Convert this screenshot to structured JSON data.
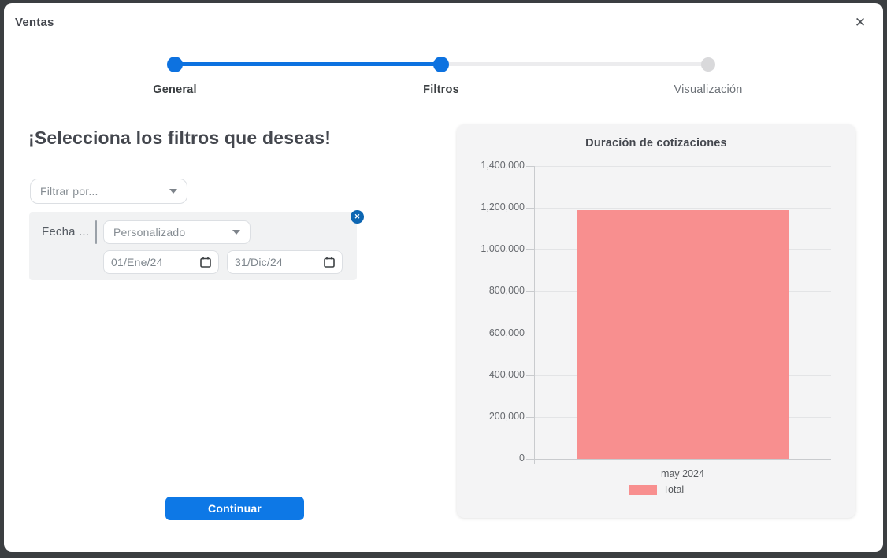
{
  "modal": {
    "title": "Ventas",
    "close_icon": "✕"
  },
  "stepper": {
    "steps": [
      {
        "label": "General",
        "state": "complete"
      },
      {
        "label": "Filtros",
        "state": "active"
      },
      {
        "label": "Visualización",
        "state": "pending"
      }
    ]
  },
  "filters": {
    "heading": "¡Selecciona los filtros que deseas!",
    "filter_by_placeholder": "Filtrar por...",
    "chip": {
      "label": "Fecha ...",
      "mode_selected": "Personalizado",
      "date_from": "01/Ene/24",
      "date_to": "31/Dic/24",
      "remove_icon": "✕"
    },
    "continue_label": "Continuar"
  },
  "chart_data": {
    "type": "bar",
    "title": "Duración de cotizaciones",
    "categories": [
      "may 2024"
    ],
    "series": [
      {
        "name": "Total",
        "values": [
          1190000
        ],
        "color": "#f88f8f"
      }
    ],
    "ylim": [
      0,
      1400000
    ],
    "ytick_step": 200000,
    "ytick_labels": [
      "0",
      "200,000",
      "400,000",
      "600,000",
      "800,000",
      "1,000,000",
      "1,200,000",
      "1,400,000"
    ],
    "grid": true,
    "legend_position": "bottom"
  },
  "colors": {
    "accent_blue": "#0d78e6",
    "stepper_blue": "#0d72e0",
    "badge_blue": "#0d66b2",
    "bar_pink": "#f88f8f",
    "backdrop": "#3b3e41",
    "card_bg": "#f4f4f5"
  }
}
